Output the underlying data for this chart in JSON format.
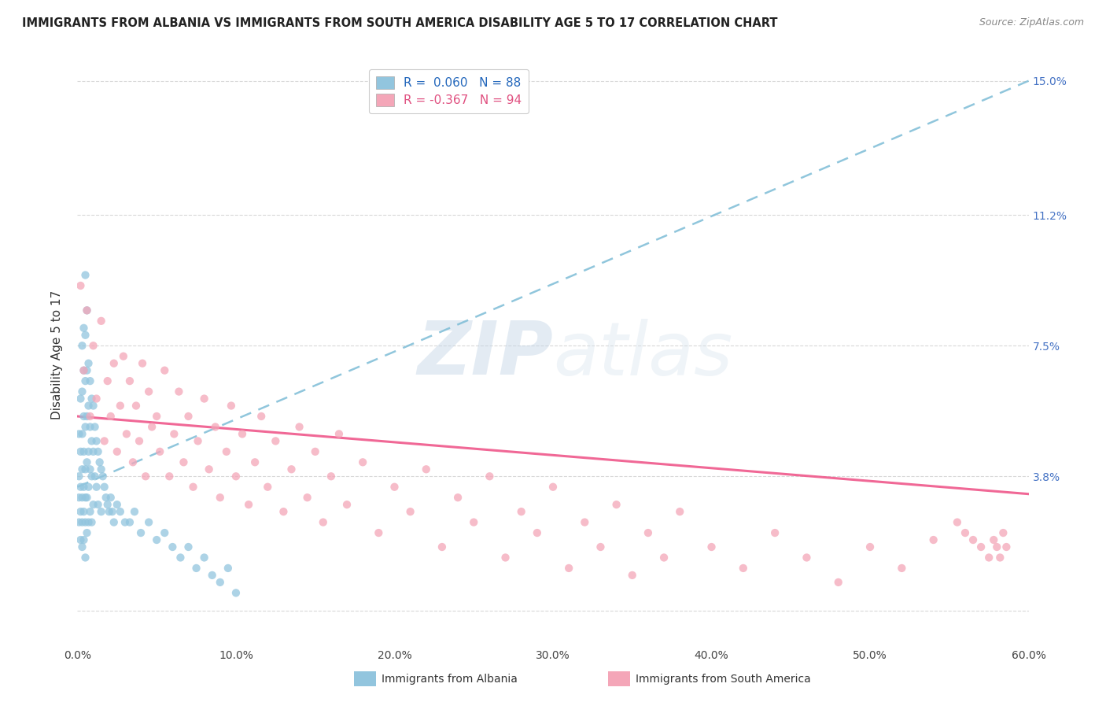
{
  "title": "IMMIGRANTS FROM ALBANIA VS IMMIGRANTS FROM SOUTH AMERICA DISABILITY AGE 5 TO 17 CORRELATION CHART",
  "source": "Source: ZipAtlas.com",
  "ylabel": "Disability Age 5 to 17",
  "albania_color": "#92C5DE",
  "south_america_color": "#F4A6B8",
  "albania_line_color": "#7DBCD6",
  "south_america_line_color": "#F06090",
  "R_albania": 0.06,
  "N_albania": 88,
  "R_south_america": -0.367,
  "N_south_america": 94,
  "legend_label_albania": "Immigrants from Albania",
  "legend_label_south_america": "Immigrants from South America",
  "watermark": "ZIPatlas",
  "albania_scatter_x": [
    0.001,
    0.001,
    0.001,
    0.001,
    0.002,
    0.002,
    0.002,
    0.002,
    0.002,
    0.003,
    0.003,
    0.003,
    0.003,
    0.003,
    0.003,
    0.003,
    0.004,
    0.004,
    0.004,
    0.004,
    0.004,
    0.004,
    0.004,
    0.005,
    0.005,
    0.005,
    0.005,
    0.005,
    0.005,
    0.005,
    0.005,
    0.006,
    0.006,
    0.006,
    0.006,
    0.006,
    0.006,
    0.007,
    0.007,
    0.007,
    0.007,
    0.007,
    0.008,
    0.008,
    0.008,
    0.008,
    0.009,
    0.009,
    0.009,
    0.009,
    0.01,
    0.01,
    0.01,
    0.011,
    0.011,
    0.012,
    0.012,
    0.013,
    0.013,
    0.014,
    0.015,
    0.015,
    0.016,
    0.017,
    0.018,
    0.019,
    0.02,
    0.021,
    0.022,
    0.023,
    0.025,
    0.027,
    0.03,
    0.033,
    0.036,
    0.04,
    0.045,
    0.05,
    0.055,
    0.06,
    0.065,
    0.07,
    0.075,
    0.08,
    0.085,
    0.09,
    0.095,
    0.1
  ],
  "albania_scatter_y": [
    0.05,
    0.038,
    0.032,
    0.025,
    0.06,
    0.045,
    0.035,
    0.028,
    0.02,
    0.075,
    0.062,
    0.05,
    0.04,
    0.032,
    0.025,
    0.018,
    0.08,
    0.068,
    0.055,
    0.045,
    0.035,
    0.028,
    0.02,
    0.095,
    0.078,
    0.065,
    0.052,
    0.04,
    0.032,
    0.025,
    0.015,
    0.085,
    0.068,
    0.055,
    0.042,
    0.032,
    0.022,
    0.07,
    0.058,
    0.045,
    0.035,
    0.025,
    0.065,
    0.052,
    0.04,
    0.028,
    0.06,
    0.048,
    0.038,
    0.025,
    0.058,
    0.045,
    0.03,
    0.052,
    0.038,
    0.048,
    0.035,
    0.045,
    0.03,
    0.042,
    0.04,
    0.028,
    0.038,
    0.035,
    0.032,
    0.03,
    0.028,
    0.032,
    0.028,
    0.025,
    0.03,
    0.028,
    0.025,
    0.025,
    0.028,
    0.022,
    0.025,
    0.02,
    0.022,
    0.018,
    0.015,
    0.018,
    0.012,
    0.015,
    0.01,
    0.008,
    0.012,
    0.005
  ],
  "south_america_scatter_x": [
    0.002,
    0.004,
    0.006,
    0.008,
    0.01,
    0.012,
    0.015,
    0.017,
    0.019,
    0.021,
    0.023,
    0.025,
    0.027,
    0.029,
    0.031,
    0.033,
    0.035,
    0.037,
    0.039,
    0.041,
    0.043,
    0.045,
    0.047,
    0.05,
    0.052,
    0.055,
    0.058,
    0.061,
    0.064,
    0.067,
    0.07,
    0.073,
    0.076,
    0.08,
    0.083,
    0.087,
    0.09,
    0.094,
    0.097,
    0.1,
    0.104,
    0.108,
    0.112,
    0.116,
    0.12,
    0.125,
    0.13,
    0.135,
    0.14,
    0.145,
    0.15,
    0.155,
    0.16,
    0.165,
    0.17,
    0.18,
    0.19,
    0.2,
    0.21,
    0.22,
    0.23,
    0.24,
    0.25,
    0.26,
    0.27,
    0.28,
    0.29,
    0.3,
    0.31,
    0.32,
    0.33,
    0.34,
    0.35,
    0.36,
    0.37,
    0.38,
    0.4,
    0.42,
    0.44,
    0.46,
    0.48,
    0.5,
    0.52,
    0.54,
    0.555,
    0.56,
    0.565,
    0.57,
    0.575,
    0.578,
    0.58,
    0.582,
    0.584,
    0.586
  ],
  "south_america_scatter_y": [
    0.092,
    0.068,
    0.085,
    0.055,
    0.075,
    0.06,
    0.082,
    0.048,
    0.065,
    0.055,
    0.07,
    0.045,
    0.058,
    0.072,
    0.05,
    0.065,
    0.042,
    0.058,
    0.048,
    0.07,
    0.038,
    0.062,
    0.052,
    0.055,
    0.045,
    0.068,
    0.038,
    0.05,
    0.062,
    0.042,
    0.055,
    0.035,
    0.048,
    0.06,
    0.04,
    0.052,
    0.032,
    0.045,
    0.058,
    0.038,
    0.05,
    0.03,
    0.042,
    0.055,
    0.035,
    0.048,
    0.028,
    0.04,
    0.052,
    0.032,
    0.045,
    0.025,
    0.038,
    0.05,
    0.03,
    0.042,
    0.022,
    0.035,
    0.028,
    0.04,
    0.018,
    0.032,
    0.025,
    0.038,
    0.015,
    0.028,
    0.022,
    0.035,
    0.012,
    0.025,
    0.018,
    0.03,
    0.01,
    0.022,
    0.015,
    0.028,
    0.018,
    0.012,
    0.022,
    0.015,
    0.008,
    0.018,
    0.012,
    0.02,
    0.025,
    0.022,
    0.02,
    0.018,
    0.015,
    0.02,
    0.018,
    0.015,
    0.022,
    0.018
  ]
}
